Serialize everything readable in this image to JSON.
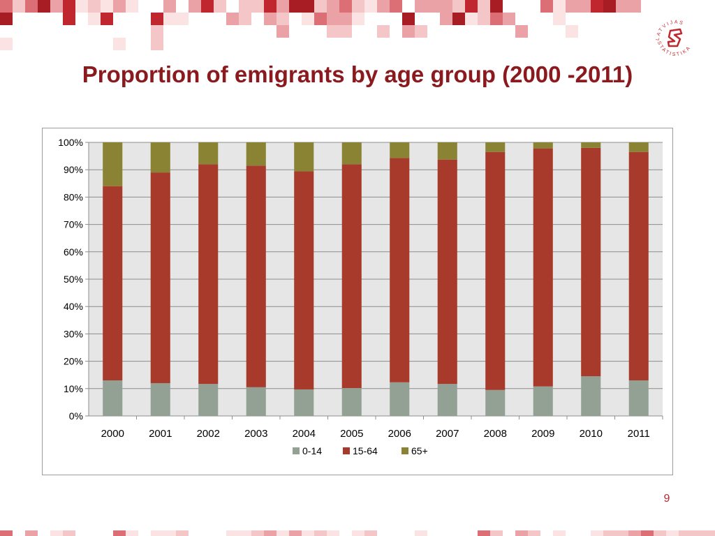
{
  "slide": {
    "title": "Proportion of emigrants by age group (2000 -2011)",
    "page_number": "9",
    "logo_text_top": "LATVIJAS",
    "logo_text_bottom": "STATISTIKA"
  },
  "colors": {
    "title": "#8b1a1f",
    "series_0_14": "#93a195",
    "series_15_64": "#a73a2a",
    "series_65_plus": "#8a8334",
    "plot_background": "#e6e6e6",
    "decoration": "#c0262d"
  },
  "chart_data": {
    "type": "bar",
    "stacked": "percent",
    "categories": [
      "2000",
      "2001",
      "2002",
      "2003",
      "2004",
      "2005",
      "2006",
      "2007",
      "2008",
      "2009",
      "2010",
      "2011"
    ],
    "series": [
      {
        "name": "0-14",
        "values": [
          13,
          12,
          11.7,
          10.5,
          9.7,
          10.2,
          12.3,
          11.7,
          9.5,
          10.8,
          14.5,
          13
        ]
      },
      {
        "name": "15-64",
        "values": [
          71,
          77,
          80.3,
          81,
          79.7,
          81.8,
          82,
          82,
          87,
          87,
          83.5,
          83.5
        ]
      },
      {
        "name": "65+",
        "values": [
          16,
          11,
          8,
          8.5,
          10.6,
          8,
          5.7,
          6.3,
          3.5,
          2.2,
          2,
          3.5
        ]
      }
    ],
    "ylim": [
      0,
      100
    ],
    "y_ticks": [
      "0%",
      "10%",
      "20%",
      "30%",
      "40%",
      "50%",
      "60%",
      "70%",
      "80%",
      "90%",
      "100%"
    ],
    "grid": true,
    "legend_position": "bottom",
    "title": "",
    "xlabel": "",
    "ylabel": ""
  }
}
